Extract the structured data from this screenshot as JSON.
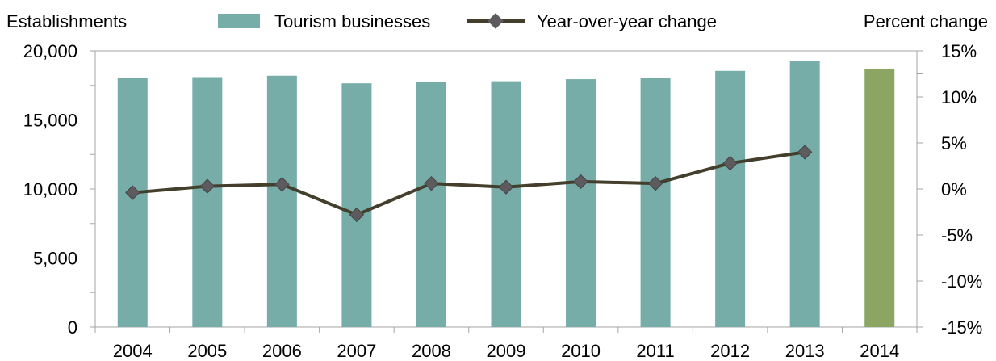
{
  "chart_data": {
    "type": "bar",
    "categories": [
      "2004",
      "2005",
      "2006",
      "2007",
      "2008",
      "2009",
      "2010",
      "2011",
      "2012",
      "2013",
      "2014"
    ],
    "series": [
      {
        "name": "Tourism businesses",
        "type": "bar",
        "axis": "left",
        "values": [
          18050,
          18100,
          18200,
          17650,
          17750,
          17800,
          17950,
          18050,
          18550,
          19250,
          18700
        ],
        "color": "#76ada9",
        "highlight": {
          "index": 10,
          "color": "#8ba663"
        }
      },
      {
        "name": "Year-over-year change",
        "type": "line",
        "axis": "right",
        "values": [
          -0.4,
          0.3,
          0.5,
          -2.8,
          0.6,
          0.2,
          0.8,
          0.6,
          2.8,
          4.0,
          null
        ],
        "color": "#433f2c",
        "marker_color": "#5d5b5d"
      }
    ],
    "ylabel": "Establishments",
    "ylabel_right": "Percent change",
    "ylim": [
      0,
      20000
    ],
    "ylim_right": [
      -15,
      15
    ],
    "yticks": [
      "0",
      "5,000",
      "10,000",
      "15,000",
      "20,000"
    ],
    "yticks_right": [
      "-15%",
      "-10%",
      "-5%",
      "0%",
      "5%",
      "10%",
      "15%"
    ],
    "grid": false,
    "legend": "top-center"
  }
}
